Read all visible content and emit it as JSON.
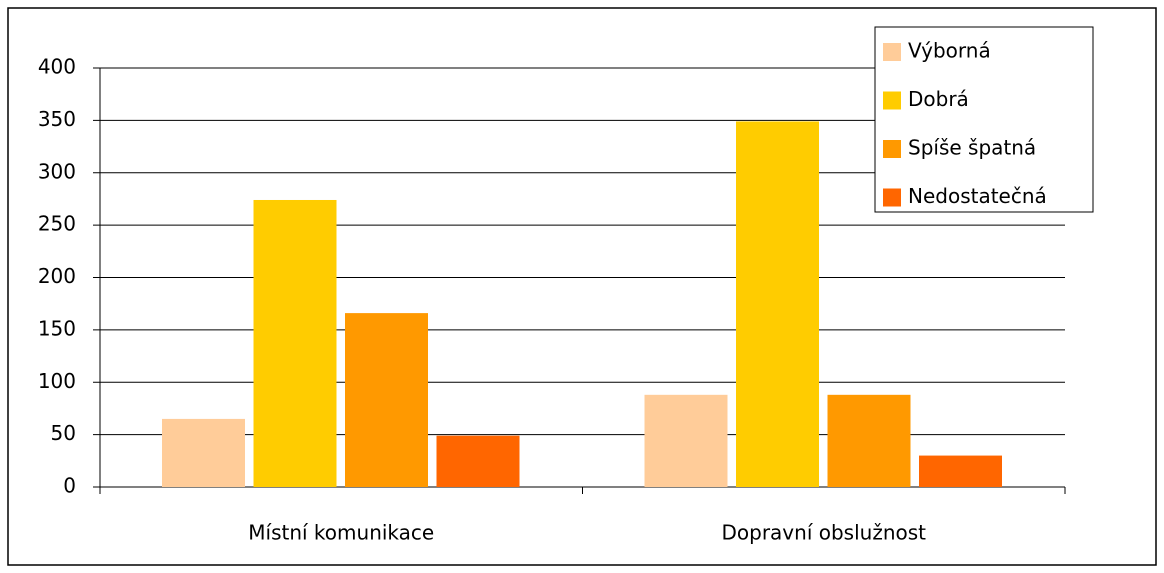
{
  "chart_data": {
    "type": "bar",
    "categories": [
      "Místní komunikace",
      "Dopravní obslužnost"
    ],
    "series": [
      {
        "name": "Výborná",
        "color": "#FFCC99",
        "values": [
          65,
          88
        ]
      },
      {
        "name": "Dobrá",
        "color": "#FFCC00",
        "values": [
          274,
          349
        ]
      },
      {
        "name": "Spíše špatná",
        "color": "#FF9900",
        "values": [
          166,
          88
        ]
      },
      {
        "name": "Nedostatečná",
        "color": "#FF6600",
        "values": [
          49,
          30
        ]
      }
    ],
    "ylim": [
      0,
      400
    ],
    "yticks": [
      0,
      50,
      100,
      150,
      200,
      250,
      300,
      350,
      400
    ],
    "grid": true,
    "legend": "top-right"
  }
}
